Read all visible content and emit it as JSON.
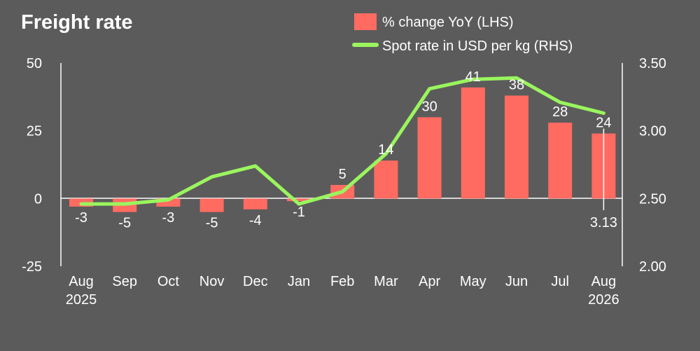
{
  "chart_data": {
    "type": "bar",
    "title": "Freight rate",
    "categories": [
      "Aug",
      "Sep",
      "Oct",
      "Nov",
      "Dec",
      "Jan",
      "Feb",
      "Mar",
      "Apr",
      "May",
      "Jun",
      "Jul",
      "Aug"
    ],
    "years": [
      "2025",
      "",
      "",
      "",
      "",
      "",
      "",
      "",
      "",
      "",
      "",
      "",
      "2026"
    ],
    "series": [
      {
        "name": "% change YoY (LHS)",
        "type": "bar",
        "axis": "left",
        "color": "#ff6b61",
        "values": [
          -3,
          -5,
          -3,
          -5,
          -4,
          -1,
          5,
          14,
          30,
          41,
          38,
          28,
          24
        ],
        "labels": [
          "-3",
          "-5",
          "-3",
          "-5",
          "-4",
          "-1",
          "5",
          "14",
          "30",
          "41",
          "38",
          "28",
          "24"
        ]
      },
      {
        "name": "Spot rate in USD per kg (RHS)",
        "type": "line",
        "axis": "right",
        "color": "#9af55e",
        "values": [
          2.46,
          2.46,
          2.49,
          2.66,
          2.74,
          2.46,
          2.55,
          2.83,
          3.31,
          3.38,
          3.39,
          3.21,
          3.13
        ],
        "last_label": "3.13"
      }
    ],
    "yaxis_left": {
      "range": [
        -25,
        50
      ],
      "ticks": [
        "50",
        "25",
        "0",
        "-25"
      ]
    },
    "yaxis_right": {
      "range": [
        2.0,
        3.5
      ],
      "ticks": [
        "3.50",
        "3.00",
        "2.50",
        "2.00"
      ]
    },
    "legend_position": "top-right",
    "grid": false
  }
}
